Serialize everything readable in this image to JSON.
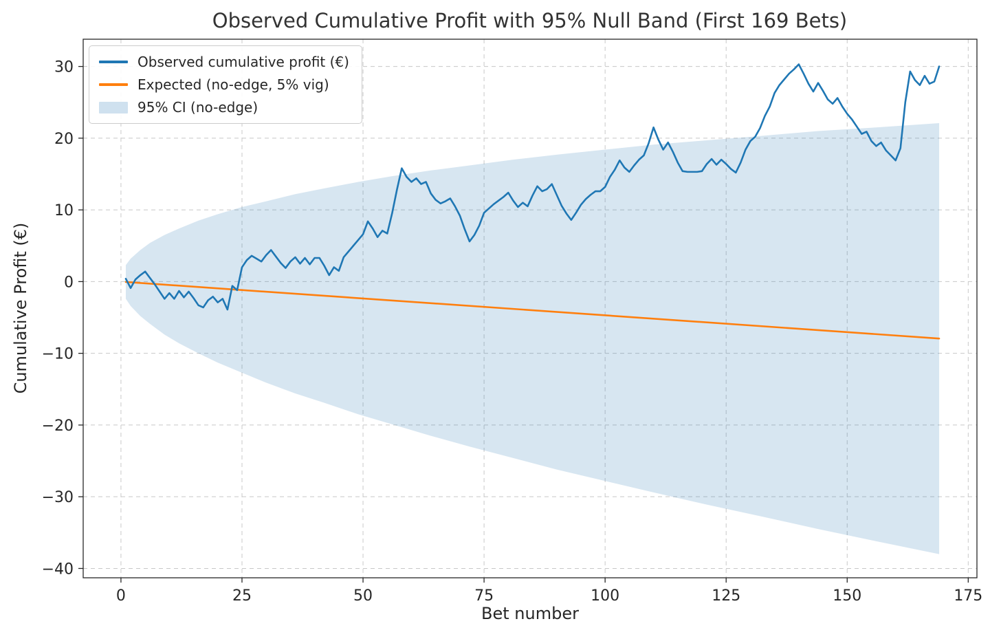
{
  "chart_data": {
    "type": "line",
    "title": "Observed Cumulative Profit with 95% Null Band (First 169 Bets)",
    "xlabel": "Bet number",
    "ylabel": "Cumulative Profit (€)",
    "xlim": [
      -7.8,
      176.8
    ],
    "ylim": [
      -41.3,
      33.8
    ],
    "grid": true,
    "legend_position": "upper left",
    "xticks": {
      "values": [
        0,
        25,
        50,
        75,
        100,
        125,
        150,
        175
      ],
      "labels": [
        "0",
        "25",
        "50",
        "75",
        "100",
        "125",
        "150",
        "175"
      ]
    },
    "yticks": {
      "values": [
        -40,
        -30,
        -20,
        -10,
        0,
        10,
        20,
        30
      ],
      "labels": [
        "−40",
        "−30",
        "−20",
        "−10",
        "0",
        "10",
        "20",
        "30"
      ]
    },
    "colors": {
      "observed": "#1f77b4",
      "expected": "#ff7f0e",
      "band": "#1f77b4",
      "band_opacity": 0.18,
      "grid": "#c8c8c8",
      "spine": "#262626",
      "tick": "#262626"
    },
    "legend": [
      {
        "label": "Observed cumulative profit (€)",
        "type": "line",
        "swatch_color": "#1f77b4"
      },
      {
        "label": "Expected (no-edge, 5% vig)",
        "type": "line",
        "swatch_color": "#ff7f0e"
      },
      {
        "label": "95% CI (no-edge)",
        "type": "patch",
        "swatch_color": "#cfe1ef"
      }
    ],
    "observed": {
      "name": "Observed cumulative profit (€)",
      "x_start": 1,
      "values": [
        0.4,
        -0.9,
        0.3,
        0.9,
        1.4,
        0.5,
        -0.4,
        -1.4,
        -2.4,
        -1.6,
        -2.4,
        -1.3,
        -2.2,
        -1.4,
        -2.3,
        -3.3,
        -3.6,
        -2.6,
        -2.1,
        -2.9,
        -2.4,
        -3.9,
        -0.6,
        -1.2,
        2.0,
        3.0,
        3.6,
        3.2,
        2.8,
        3.7,
        4.4,
        3.5,
        2.6,
        1.9,
        2.8,
        3.4,
        2.5,
        3.3,
        2.4,
        3.3,
        3.3,
        2.2,
        0.9,
        2.0,
        1.5,
        3.4,
        4.2,
        5.0,
        5.8,
        6.6,
        8.4,
        7.4,
        6.2,
        7.1,
        6.7,
        9.5,
        12.8,
        15.8,
        14.6,
        13.9,
        14.4,
        13.6,
        13.9,
        12.3,
        11.4,
        10.9,
        11.2,
        11.6,
        10.5,
        9.2,
        7.3,
        5.6,
        6.5,
        7.8,
        9.6,
        10.2,
        10.8,
        11.3,
        11.8,
        12.4,
        11.3,
        10.4,
        11.0,
        10.5,
        12.0,
        13.3,
        12.6,
        12.9,
        13.6,
        12.1,
        10.6,
        9.5,
        8.6,
        9.6,
        10.7,
        11.5,
        12.1,
        12.6,
        12.6,
        13.2,
        14.6,
        15.6,
        16.9,
        15.9,
        15.3,
        16.2,
        17.0,
        17.6,
        19.3,
        21.5,
        19.8,
        18.4,
        19.4,
        18.1,
        16.6,
        15.4,
        15.3,
        15.3,
        15.3,
        15.4,
        16.4,
        17.1,
        16.3,
        17.0,
        16.4,
        15.7,
        15.2,
        16.6,
        18.4,
        19.6,
        20.2,
        21.4,
        23.1,
        24.4,
        26.3,
        27.4,
        28.2,
        29.0,
        29.6,
        30.3,
        29.0,
        27.6,
        26.5,
        27.7,
        26.6,
        25.4,
        24.8,
        25.6,
        24.4,
        23.4,
        22.6,
        21.6,
        20.6,
        20.9,
        19.6,
        18.9,
        19.4,
        18.3,
        17.6,
        16.9,
        18.6,
        25.0,
        29.3,
        28.1,
        27.4,
        28.7,
        27.6,
        27.9,
        30.0
      ]
    },
    "expected": {
      "name": "Expected (no-edge, 5% vig)",
      "x": [
        1,
        169
      ],
      "y": [
        -0.05,
        -7.94
      ]
    },
    "band": {
      "name": "95% CI (no-edge)",
      "x": [
        1,
        2,
        4,
        6,
        9,
        12,
        16,
        20,
        25,
        30,
        36,
        42,
        49,
        56,
        64,
        72,
        81,
        90,
        100,
        110,
        121,
        132,
        144,
        156,
        169
      ],
      "upper": [
        2.3,
        3.2,
        4.4,
        5.4,
        6.5,
        7.4,
        8.5,
        9.4,
        10.4,
        11.2,
        12.2,
        13.0,
        13.9,
        14.7,
        15.5,
        16.2,
        17.0,
        17.7,
        18.4,
        19.1,
        19.7,
        20.3,
        21.0,
        21.5,
        22.1
      ],
      "lower": [
        -2.4,
        -3.4,
        -4.8,
        -5.9,
        -7.4,
        -8.6,
        -10.0,
        -11.3,
        -12.7,
        -14.1,
        -15.6,
        -16.9,
        -18.5,
        -19.9,
        -21.5,
        -23.0,
        -24.6,
        -26.2,
        -27.8,
        -29.4,
        -31.1,
        -32.7,
        -34.5,
        -36.2,
        -38.0
      ]
    }
  }
}
